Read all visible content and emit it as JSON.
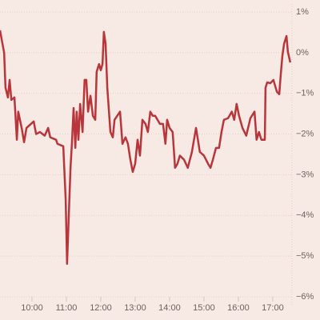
{
  "chart_data": {
    "type": "line",
    "x": [
      9.07,
      9.19,
      9.23,
      9.3,
      9.35,
      9.4,
      9.49,
      9.56,
      9.6,
      9.7,
      9.77,
      9.84,
      10.05,
      10.12,
      10.23,
      10.37,
      10.47,
      10.53,
      10.7,
      10.74,
      10.91,
      10.98,
      11.02,
      11.07,
      11.12,
      11.16,
      11.21,
      11.26,
      11.3,
      11.35,
      11.4,
      11.47,
      11.53,
      11.58,
      11.63,
      11.7,
      11.77,
      11.84,
      11.88,
      11.95,
      12.0,
      12.05,
      12.09,
      12.14,
      12.19,
      12.28,
      12.35,
      12.4,
      12.56,
      12.63,
      12.72,
      12.79,
      12.86,
      12.93,
      13.0,
      13.07,
      13.14,
      13.21,
      13.3,
      13.37,
      13.44,
      13.51,
      13.58,
      13.72,
      13.81,
      13.88,
      13.93,
      14.0,
      14.09,
      14.16,
      14.23,
      14.3,
      14.42,
      14.53,
      14.65,
      14.77,
      14.88,
      15.0,
      15.12,
      15.19,
      15.26,
      15.35,
      15.44,
      15.51,
      15.58,
      15.7,
      15.81,
      15.88,
      15.95,
      16.02,
      16.12,
      16.23,
      16.35,
      16.47,
      16.53,
      16.6,
      16.67,
      16.77,
      16.79,
      16.84,
      16.93,
      17.02,
      17.12,
      17.19,
      17.23,
      17.28,
      17.33,
      17.4,
      17.44,
      17.51
    ],
    "series": [
      {
        "color": "#b8363b",
        "values": [
          0.55,
          0.0,
          -0.86,
          -1.1,
          -0.67,
          -1.16,
          -1.1,
          -2.14,
          -1.45,
          -1.85,
          -2.2,
          -1.85,
          -1.69,
          -2.0,
          -1.95,
          -2.04,
          -1.85,
          -2.08,
          -2.14,
          -2.24,
          -2.3,
          -3.61,
          -5.19,
          -4.0,
          -2.83,
          -2.24,
          -1.36,
          -2.34,
          -1.45,
          -2.14,
          -1.26,
          -1.95,
          -0.67,
          -0.67,
          -1.45,
          -1.06,
          -1.55,
          -1.65,
          -0.47,
          -0.28,
          -0.43,
          -0.28,
          0.51,
          0.22,
          -0.86,
          -1.95,
          -2.08,
          -1.65,
          -1.45,
          -2.24,
          -2.08,
          -2.24,
          -2.63,
          -2.93,
          -2.73,
          -2.14,
          -2.53,
          -1.65,
          -1.75,
          -1.95,
          -1.45,
          -1.55,
          -1.55,
          -1.75,
          -1.75,
          -2.24,
          -1.65,
          -1.85,
          -1.95,
          -2.83,
          -2.73,
          -2.53,
          -2.63,
          -2.83,
          -2.44,
          -1.85,
          -2.44,
          -2.53,
          -2.73,
          -2.83,
          -2.63,
          -2.34,
          -2.34,
          -1.95,
          -1.65,
          -1.61,
          -1.45,
          -1.65,
          -1.26,
          -1.55,
          -1.85,
          -2.04,
          -1.61,
          -1.45,
          -2.14,
          -1.95,
          -2.14,
          -2.14,
          -0.86,
          -0.73,
          -0.75,
          -0.67,
          -0.96,
          -1.02,
          -0.57,
          -0.08,
          0.22,
          0.41,
          0.02,
          -0.24
        ]
      }
    ],
    "xlim": [
      9.07,
      17.56
    ],
    "xticks": [
      {
        "value": 10,
        "label": "10:00"
      },
      {
        "value": 11,
        "label": "11:00"
      },
      {
        "value": 12,
        "label": "12:00"
      },
      {
        "value": 13,
        "label": "13:00"
      },
      {
        "value": 14,
        "label": "14:00"
      },
      {
        "value": 15,
        "label": "15:00"
      },
      {
        "value": 16,
        "label": "16:00"
      },
      {
        "value": 17,
        "label": "17:00"
      }
    ],
    "ylim": [
      -6,
      1
    ],
    "yticks": [
      {
        "value": 1,
        "label": "1%"
      },
      {
        "value": 0,
        "label": "0%"
      },
      {
        "value": -1,
        "label": "−1%"
      },
      {
        "value": -2,
        "label": "−2%"
      },
      {
        "value": -3,
        "label": "−3%"
      },
      {
        "value": -4,
        "label": "−4%"
      },
      {
        "value": -5,
        "label": "−5%"
      },
      {
        "value": -6,
        "label": "−6%"
      }
    ],
    "grid": true
  }
}
